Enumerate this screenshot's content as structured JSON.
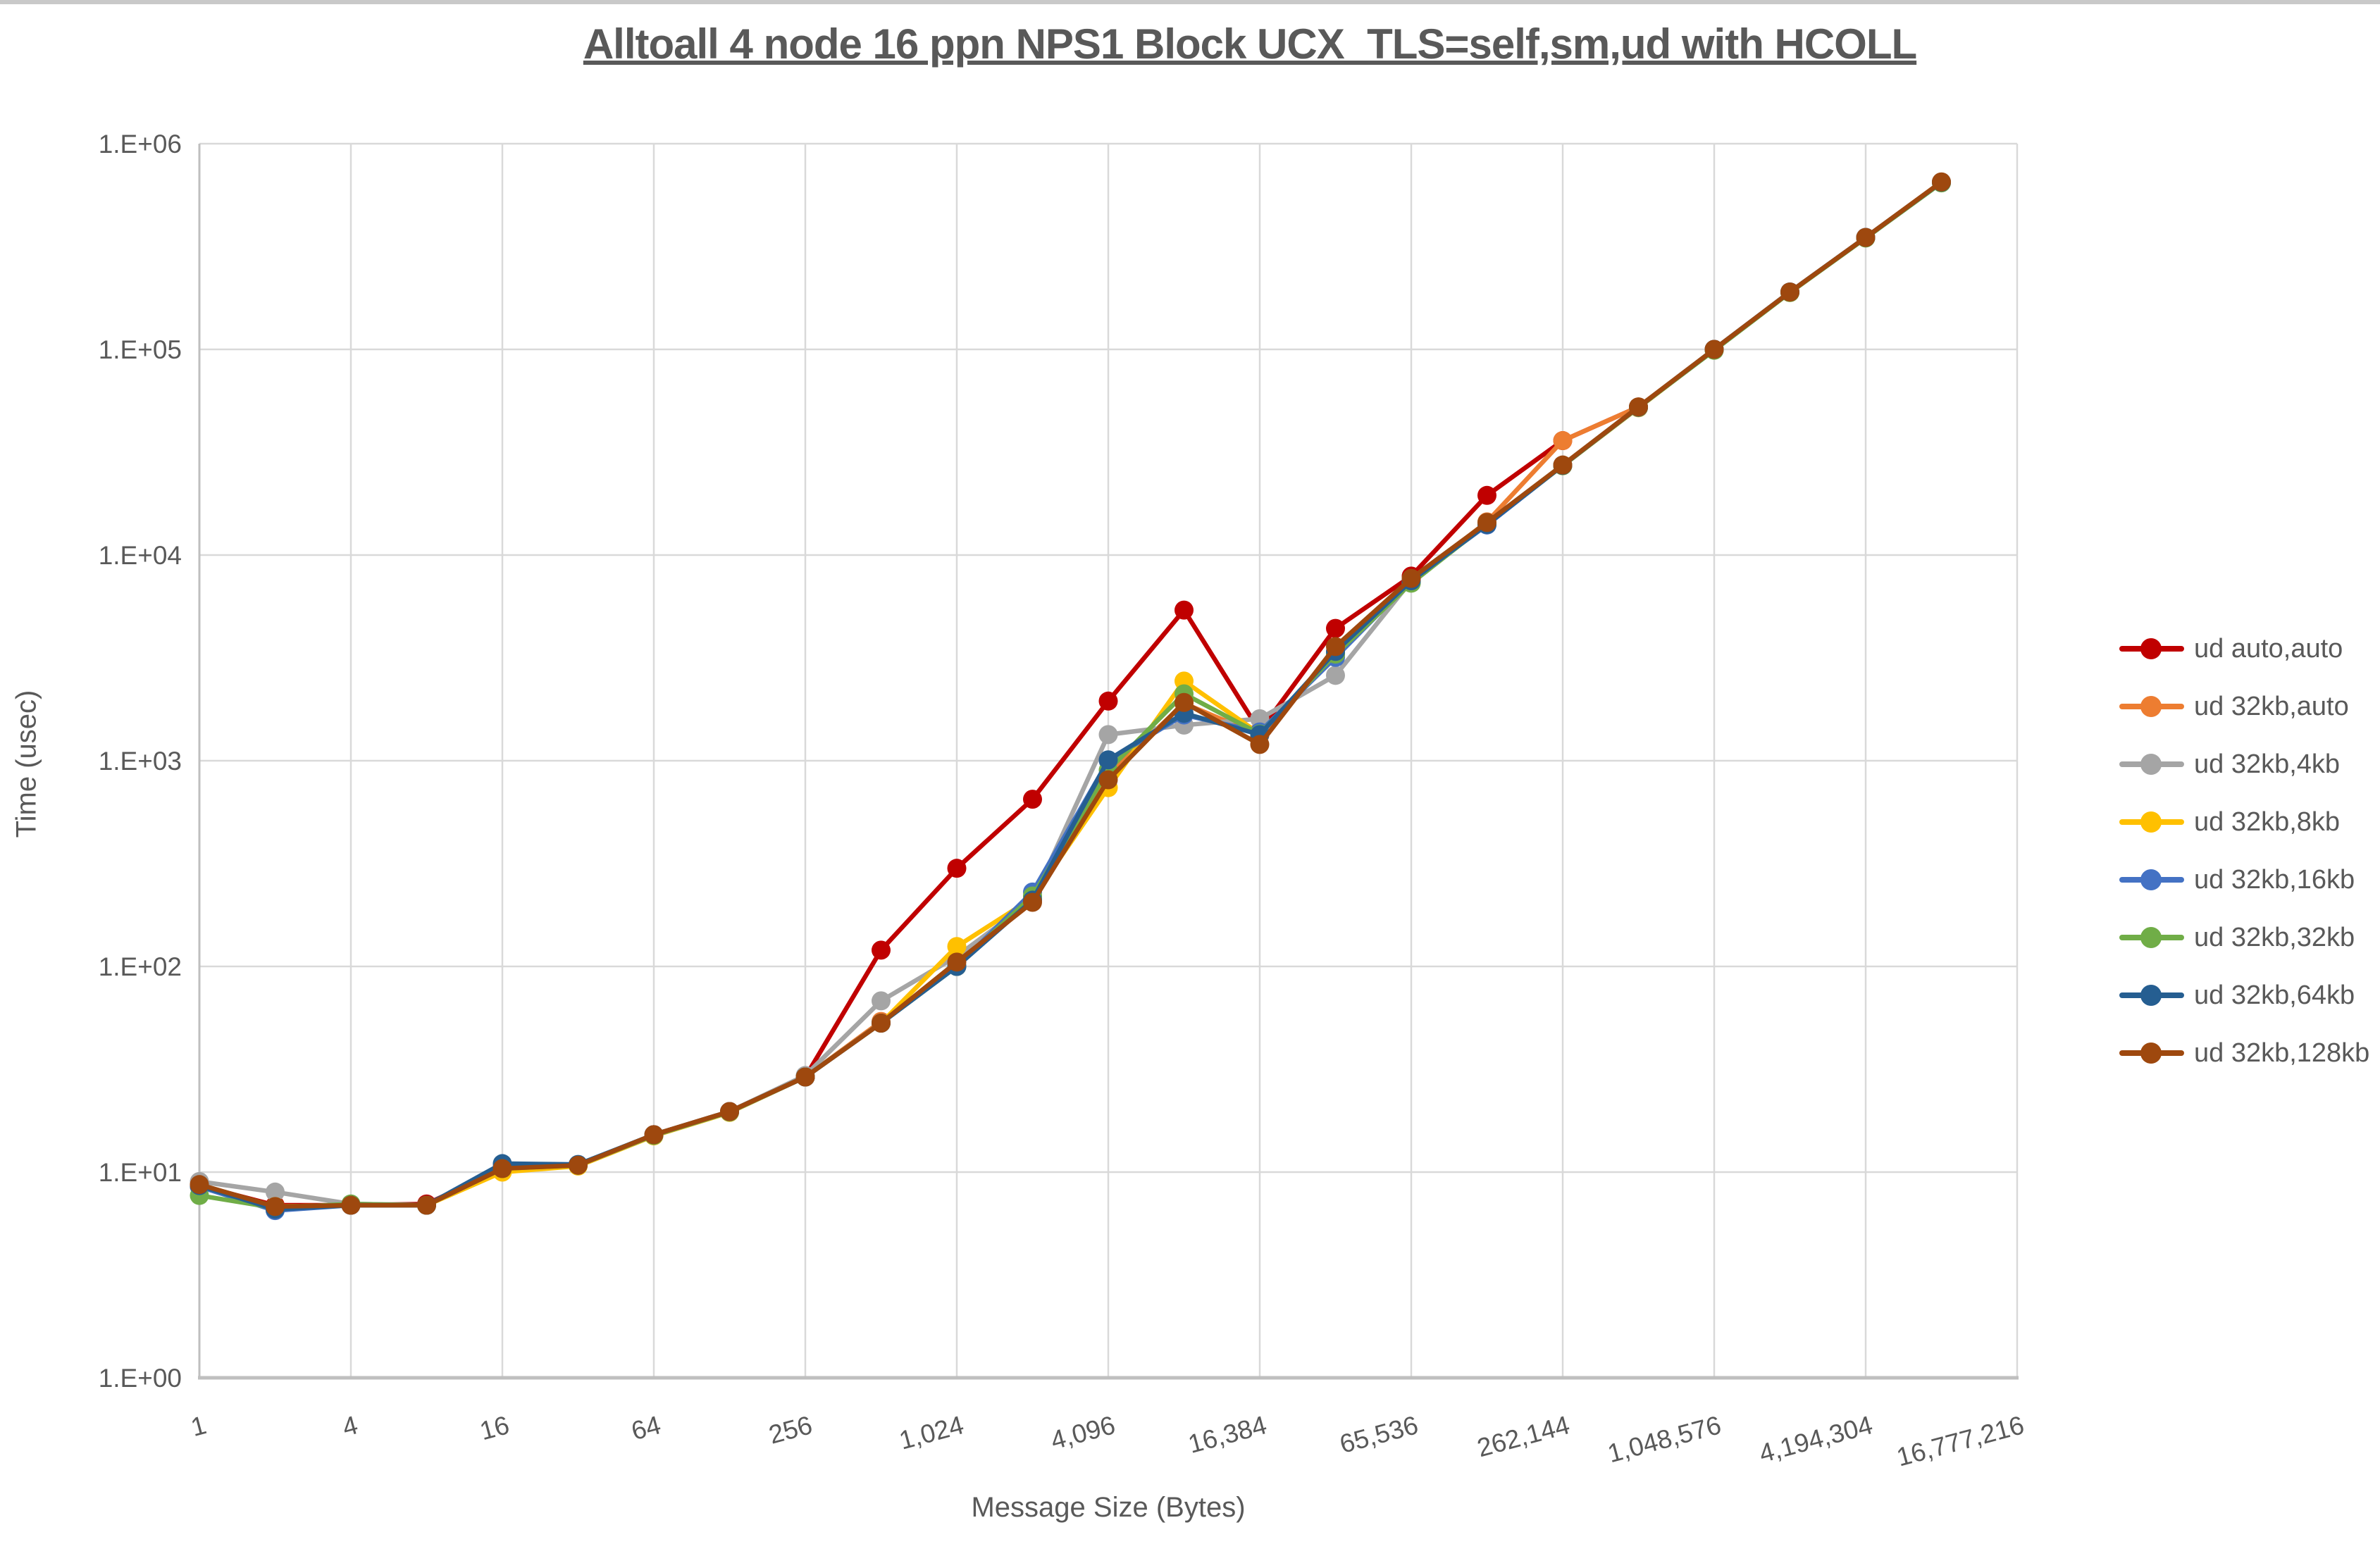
{
  "window": {
    "top_strip_color": "#c9c9c9"
  },
  "chart": {
    "title": "Alltoall 4 node 16 ppn NPS1 Block UCX_TLS=self,sm,ud with HCOLL",
    "x_axis_title": "Message Size (Bytes)",
    "y_axis_title": "Time (usec)",
    "colors": {
      "text": "#595959",
      "gridline": "#d9d9d9",
      "axis_line": "#bfbfbf"
    }
  },
  "chart_data": {
    "type": "line",
    "title": "Alltoall 4 node 16 ppn NPS1 Block UCX_TLS=self,sm,ud with HCOLL",
    "xlabel": "Message Size (Bytes)",
    "ylabel": "Time (usec)",
    "x_scale": "log2-category",
    "y_scale": "log10",
    "ylim": [
      1,
      1000000
    ],
    "grid": true,
    "legend_position": "right",
    "y_tick_labels": [
      "1.E+00",
      "1.E+01",
      "1.E+02",
      "1.E+03",
      "1.E+04",
      "1.E+05",
      "1.E+06"
    ],
    "x_tick_labels": [
      "1",
      "4",
      "16",
      "64",
      "256",
      "1,024",
      "4,096",
      "16,384",
      "65,536",
      "262,144",
      "1,048,576",
      "4,194,304",
      "16,777,216"
    ],
    "categories": [
      1,
      2,
      4,
      8,
      16,
      32,
      64,
      128,
      256,
      512,
      1024,
      2048,
      4096,
      8192,
      16384,
      32768,
      65536,
      131072,
      262144,
      524288,
      1048576,
      2097152,
      4194304,
      8388608
    ],
    "series": [
      {
        "name": "ud auto,auto",
        "color": "#c00000",
        "values": [
          8.6,
          6.9,
          6.9,
          7.0,
          10.4,
          10.8,
          15.2,
          19.7,
          29,
          120,
          300,
          650,
          1950,
          5400,
          1390,
          4400,
          7900,
          19500,
          36000,
          52500,
          100000,
          190000,
          350000,
          650000
        ]
      },
      {
        "name": "ud 32kb,auto",
        "color": "#ed7d31",
        "values": [
          8.6,
          6.8,
          6.9,
          6.9,
          10.4,
          10.8,
          15.2,
          19.7,
          29,
          54,
          100,
          215,
          850,
          1900,
          1330,
          3300,
          7500,
          14500,
          36000,
          52500,
          100000,
          190000,
          350000,
          650000
        ]
      },
      {
        "name": "ud 32kb,4kb",
        "color": "#a5a5a5",
        "values": [
          9.0,
          8.0,
          7.0,
          6.9,
          10.4,
          10.8,
          15.2,
          19.7,
          29.5,
          68,
          112,
          210,
          1340,
          1490,
          1600,
          2600,
          7500,
          14400,
          27400,
          52500,
          100000,
          190000,
          350000,
          650000
        ]
      },
      {
        "name": "ud 32kb,8kb",
        "color": "#ffc000",
        "values": [
          8.5,
          6.8,
          6.9,
          6.9,
          10.0,
          10.7,
          15.0,
          19.5,
          29,
          53,
          125,
          215,
          740,
          2440,
          1350,
          3300,
          7400,
          14300,
          27200,
          52000,
          99500,
          189000,
          349000,
          648000
        ]
      },
      {
        "name": "ud 32kb,16kb",
        "color": "#4472c4",
        "values": [
          8.5,
          6.5,
          6.9,
          6.9,
          10.8,
          10.8,
          15.1,
          19.6,
          29,
          53,
          100,
          230,
          1000,
          1670,
          1380,
          3180,
          7500,
          14000,
          27300,
          52200,
          100000,
          190000,
          350000,
          650000
        ]
      },
      {
        "name": "ud 32kb,32kb",
        "color": "#70ad47",
        "values": [
          7.7,
          6.7,
          7.0,
          6.9,
          10.4,
          10.8,
          15.1,
          19.6,
          29,
          53,
          100,
          220,
          900,
          2115,
          1350,
          3300,
          7300,
          14200,
          27200,
          52300,
          99000,
          189000,
          348000,
          645000
        ]
      },
      {
        "name": "ud 32kb,64kb",
        "color": "#255e91",
        "values": [
          8.6,
          6.6,
          6.9,
          6.9,
          11.0,
          10.9,
          15.2,
          19.7,
          29,
          53,
          100,
          210,
          1010,
          1700,
          1340,
          3400,
          7500,
          14100,
          27300,
          52400,
          100000,
          190000,
          350000,
          650000
        ]
      },
      {
        "name": "ud 32kb,128kb",
        "color": "#9e480e",
        "values": [
          8.7,
          6.8,
          6.9,
          6.9,
          10.4,
          10.8,
          15.2,
          19.7,
          29,
          53,
          105,
          205,
          808,
          1920,
          1200,
          3590,
          7700,
          14400,
          27400,
          52500,
          100000,
          190000,
          350000,
          652000
        ]
      }
    ]
  }
}
